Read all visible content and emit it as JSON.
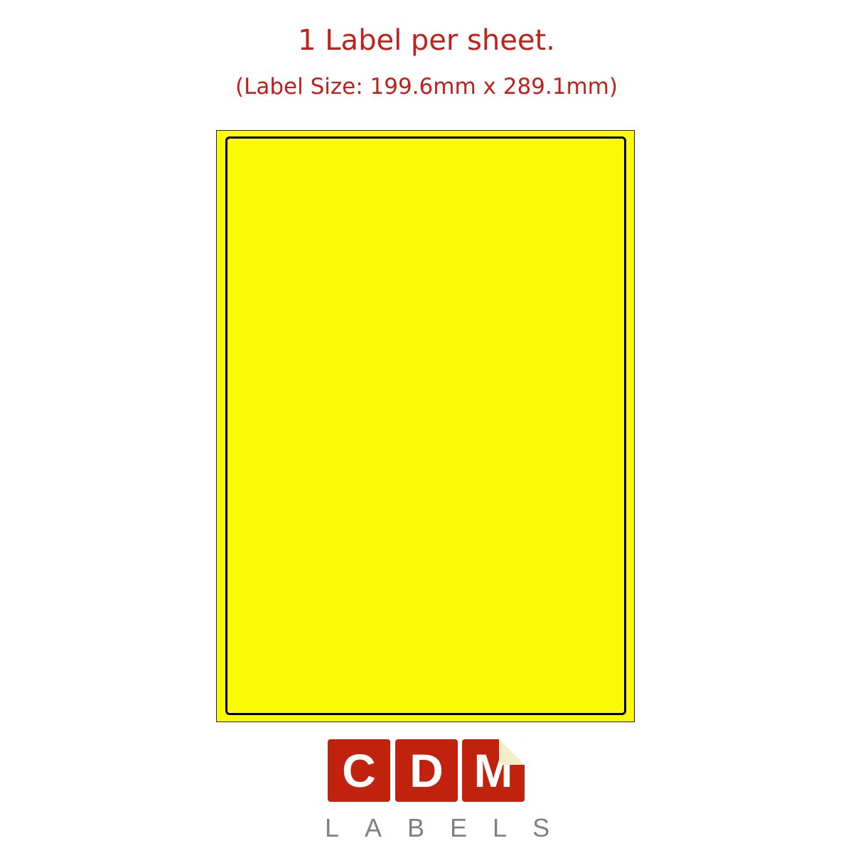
{
  "heading": {
    "title": "1 Label per sheet.",
    "subtitle": "(Label Size: 199.6mm x 289.1mm)"
  },
  "sheet": {
    "label_count": 1,
    "label_color": "#fcfa07"
  },
  "logo": {
    "letters": [
      "C",
      "D",
      "M"
    ],
    "tagline": "LABELS",
    "brand_color": "#c0220e"
  }
}
